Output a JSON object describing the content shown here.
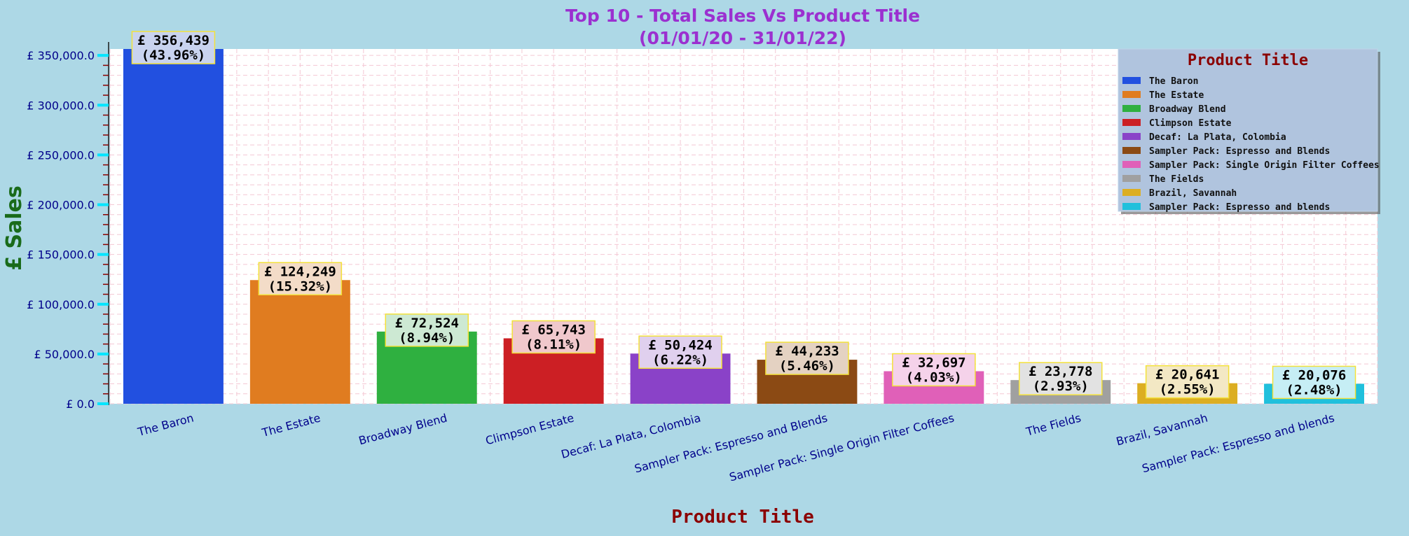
{
  "chart_data": {
    "type": "bar",
    "title": "Top 10 - Total Sales Vs Product Title",
    "subtitle": "(01/01/20 - 31/01/22)",
    "xlabel": "Product Title",
    "ylabel": "£ Sales",
    "ylim": [
      0,
      356439
    ],
    "y_ticks": [
      0,
      50000,
      100000,
      150000,
      200000,
      250000,
      300000,
      350000
    ],
    "y_tick_labels": [
      "£ 0.0",
      "£ 50,000.0",
      "£ 100,000.0",
      "£ 150,000.0",
      "£ 200,000.0",
      "£ 250,000.0",
      "£ 300,000.0",
      "£ 350,000.0"
    ],
    "grid": true,
    "legend_title": "Product Title",
    "legend_position": "top-right",
    "categories": [
      "The Baron",
      "The Estate",
      "Broadway Blend",
      "Climpson Estate",
      "Decaf: La Plata, Colombia",
      "Sampler Pack: Espresso and Blends",
      "Sampler Pack: Single Origin Filter Coffees",
      "The Fields",
      "Brazil, Savannah",
      "Sampler Pack: Espresso and blends"
    ],
    "values": [
      356439,
      124249,
      72524,
      65743,
      50424,
      44233,
      32697,
      23778,
      20641,
      20076
    ],
    "value_labels": [
      "£ 356,439",
      "£ 124,249",
      "£ 72,524",
      "£ 65,743",
      "£ 50,424",
      "£ 44,233",
      "£ 32,697",
      "£ 23,778",
      "£ 20,641",
      "£ 20,076"
    ],
    "percent_labels": [
      "(43.96%)",
      "(15.32%)",
      "(8.94%)",
      "(8.11%)",
      "(6.22%)",
      "(5.46%)",
      "(4.03%)",
      "(2.93%)",
      "(2.55%)",
      "(2.48%)"
    ],
    "colors": [
      "#2250e0",
      "#e07c20",
      "#2fb040",
      "#cc1f24",
      "#8a42c8",
      "#8b4a14",
      "#e060b8",
      "#a0a0a0",
      "#dcae22",
      "#20c0dc"
    ],
    "label_fills": [
      "#c9d3ef",
      "#f3dcc8",
      "#cde9d3",
      "#f0c8cc",
      "#e0d0ee",
      "#e4d2c2",
      "#f5d2ea",
      "#e2e2e2",
      "#f3e8c4",
      "#c6eef5"
    ]
  }
}
